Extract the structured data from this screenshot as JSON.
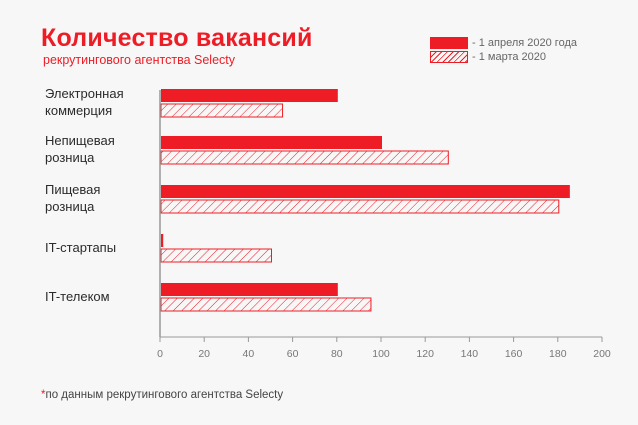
{
  "title": "Количество вакансий",
  "subtitle": "рекрутингового агентства Selecty",
  "legend": [
    {
      "label": "- 1 апреля 2020 года",
      "style": "solid"
    },
    {
      "label": "- 1 марта 2020",
      "style": "hatched"
    }
  ],
  "footnote": {
    "asterisk": "*",
    "text": "по данным рекрутингового агентства Selecty"
  },
  "colors": {
    "accent": "#ee1c25",
    "axis": "#999999",
    "text": "#2b2b2b"
  },
  "chart_data": {
    "type": "bar",
    "orientation": "horizontal",
    "categories": [
      [
        "Электронная",
        "коммерция"
      ],
      [
        "Непищевая",
        "розница"
      ],
      [
        "Пищевая",
        "розница"
      ],
      [
        "IT-стартапы"
      ],
      [
        "IT-телеком"
      ]
    ],
    "series": [
      {
        "name": "- 1 апреля 2020 года",
        "style": "solid",
        "values": [
          80,
          100,
          185,
          1,
          80
        ]
      },
      {
        "name": "- 1 марта 2020",
        "style": "hatched",
        "values": [
          55,
          130,
          180,
          50,
          95
        ]
      }
    ],
    "xlim": [
      0,
      200
    ],
    "xticks": [
      0,
      20,
      40,
      60,
      80,
      100,
      120,
      140,
      160,
      180,
      200
    ],
    "grid": false,
    "legend_position": "top-right"
  }
}
